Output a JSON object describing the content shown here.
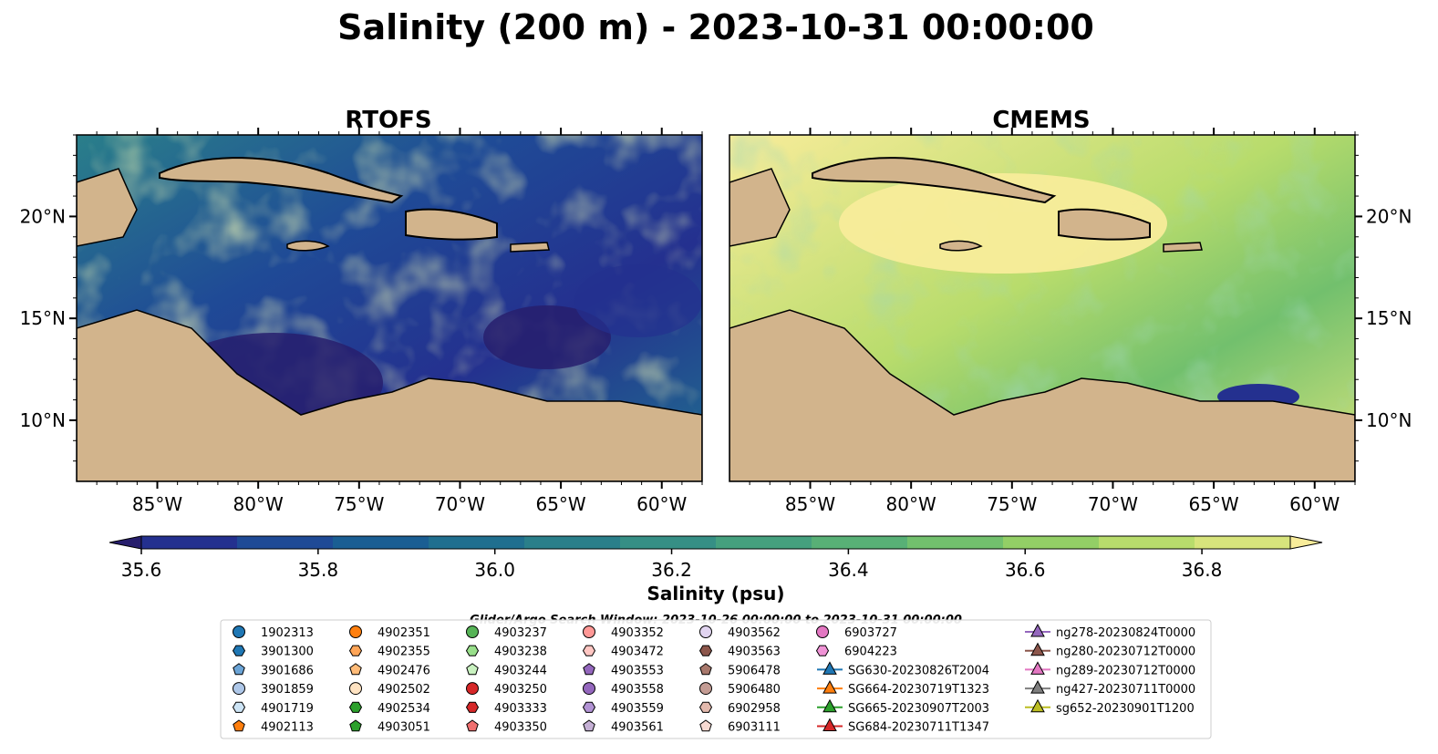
{
  "figure": {
    "title": "Salinity (200 m) - 2023-10-31 00:00:00"
  },
  "colors": {
    "land": "#d2b48c",
    "shelf": "#9ab8e0",
    "frame": "#000000"
  },
  "chart_data": [
    {
      "type": "heatmap",
      "title": "RTOFS",
      "variable": "Salinity (200 m)",
      "xlim": [
        -89,
        -58
      ],
      "ylim": [
        7,
        24
      ],
      "x_ticks": [
        "85°W",
        "80°W",
        "75°W",
        "70°W",
        "65°W",
        "60°W"
      ],
      "y_ticks": [
        "20°N",
        "15°N",
        "10°N"
      ],
      "dominant_range": "35.6–36.9 psu, fresher (<35.7) in Colombian basin and central Caribbean eddies"
    },
    {
      "type": "heatmap",
      "title": "CMEMS",
      "variable": "Salinity (200 m)",
      "xlim": [
        -89,
        -58
      ],
      "ylim": [
        7,
        24
      ],
      "x_ticks": [
        "85°W",
        "80°W",
        "75°W",
        "70°W",
        "65°W",
        "60°W"
      ],
      "y_ticks": [
        "20°N",
        "15°N",
        "10°N"
      ],
      "dominant_range": "36.4–36.9+ psu, mostly saline (yellow) with green bands"
    }
  ],
  "colorbar": {
    "label": "Salinity (psu)",
    "min": 35.5,
    "max": 36.9,
    "step": 0.1,
    "ticks": [
      "35.6",
      "35.8",
      "36.0",
      "36.2",
      "36.4",
      "36.6",
      "36.8"
    ],
    "colors": [
      "#271e6d",
      "#24308f",
      "#1f4a96",
      "#1a5e93",
      "#206f8f",
      "#2a7f8a",
      "#368f85",
      "#45a07e",
      "#58b076",
      "#72c06d",
      "#93cf66",
      "#b8dc6c",
      "#d7e47c",
      "#f8ec9a"
    ]
  },
  "search_window": "Glider/Argo Search Window: 2023-10-26 00:00:00 to 2023-10-31 00:00:00",
  "legend": {
    "columns": [
      [
        {
          "label": "1902313",
          "shape": "circle",
          "color": "#1f77b4"
        },
        {
          "label": "3901300",
          "shape": "hexagon",
          "color": "#1f77b4"
        },
        {
          "label": "3901686",
          "shape": "pentagon",
          "color": "#6ba4d6"
        },
        {
          "label": "3901859",
          "shape": "circle",
          "color": "#aec7e8"
        },
        {
          "label": "4901719",
          "shape": "hexagon",
          "color": "#cde4f5"
        },
        {
          "label": "4902113",
          "shape": "pentagon",
          "color": "#ff7f0e"
        }
      ],
      [
        {
          "label": "4902351",
          "shape": "circle",
          "color": "#ff7f0e"
        },
        {
          "label": "4902355",
          "shape": "hexagon",
          "color": "#ffa557"
        },
        {
          "label": "4902476",
          "shape": "pentagon",
          "color": "#ffbb78"
        },
        {
          "label": "4902502",
          "shape": "circle",
          "color": "#ffe3c2"
        },
        {
          "label": "4902534",
          "shape": "hexagon",
          "color": "#2ca02c"
        },
        {
          "label": "4903051",
          "shape": "pentagon",
          "color": "#2ca02c"
        }
      ],
      [
        {
          "label": "4903237",
          "shape": "circle",
          "color": "#56b356"
        },
        {
          "label": "4903238",
          "shape": "hexagon",
          "color": "#98df8a"
        },
        {
          "label": "4903244",
          "shape": "pentagon",
          "color": "#c9f2c0"
        },
        {
          "label": "4903250",
          "shape": "circle",
          "color": "#d62728"
        },
        {
          "label": "4903333",
          "shape": "hexagon",
          "color": "#d62728"
        },
        {
          "label": "4903350",
          "shape": "pentagon",
          "color": "#ef6f6f"
        }
      ],
      [
        {
          "label": "4903352",
          "shape": "circle",
          "color": "#ff9896"
        },
        {
          "label": "4903472",
          "shape": "hexagon",
          "color": "#ffc6c2"
        },
        {
          "label": "4903553",
          "shape": "pentagon",
          "color": "#9467bd"
        },
        {
          "label": "4903558",
          "shape": "circle",
          "color": "#9467bd"
        },
        {
          "label": "4903559",
          "shape": "hexagon",
          "color": "#b293d4"
        },
        {
          "label": "4903561",
          "shape": "pentagon",
          "color": "#c5b0d5"
        }
      ],
      [
        {
          "label": "4903562",
          "shape": "circle",
          "color": "#e1d4f0"
        },
        {
          "label": "4903563",
          "shape": "hexagon",
          "color": "#8c564b"
        },
        {
          "label": "5906478",
          "shape": "pentagon",
          "color": "#a8786c"
        },
        {
          "label": "5906480",
          "shape": "circle",
          "color": "#c49c94"
        },
        {
          "label": "6902958",
          "shape": "hexagon",
          "color": "#e3b9ad"
        },
        {
          "label": "6903111",
          "shape": "pentagon",
          "color": "#f7dad2"
        }
      ],
      [
        {
          "label": "6903727",
          "shape": "circle",
          "color": "#e377c2"
        },
        {
          "label": "6904223",
          "shape": "hexagon",
          "color": "#f093d6"
        },
        {
          "label": "SG630-20230826T2004",
          "shape": "triangle-line",
          "color": "#1f77b4"
        },
        {
          "label": "SG664-20230719T1323",
          "shape": "triangle-line",
          "color": "#ff7f0e"
        },
        {
          "label": "SG665-20230907T2003",
          "shape": "triangle-line",
          "color": "#2ca02c"
        },
        {
          "label": "SG684-20230711T1347",
          "shape": "triangle-line",
          "color": "#d62728"
        }
      ],
      [
        {
          "label": "ng278-20230824T0000",
          "shape": "triangle-line",
          "color": "#9467bd"
        },
        {
          "label": "ng280-20230712T0000",
          "shape": "triangle-line",
          "color": "#8c564b"
        },
        {
          "label": "ng289-20230712T0000",
          "shape": "triangle-line",
          "color": "#e377c2"
        },
        {
          "label": "ng427-20230711T0000",
          "shape": "triangle-line",
          "color": "#7f7f7f"
        },
        {
          "label": "sg652-20230901T1200",
          "shape": "triangle-line",
          "color": "#bcbd22"
        }
      ]
    ]
  }
}
